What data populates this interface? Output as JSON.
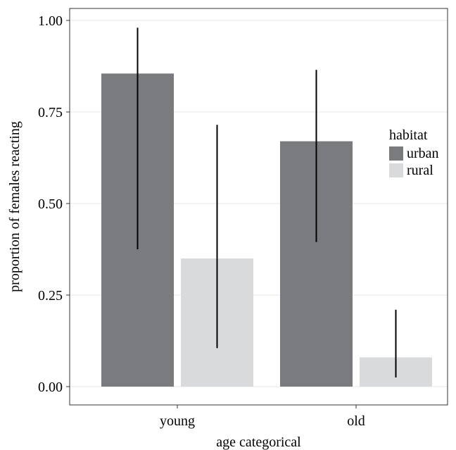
{
  "chart_data": {
    "type": "bar",
    "title": "",
    "xlabel": "age categorical",
    "ylabel": "proportion of females reacting",
    "categories": [
      "young",
      "old"
    ],
    "ylim": [
      0,
      1.0
    ],
    "yticks": [
      0.0,
      0.25,
      0.5,
      0.75,
      1.0
    ],
    "ytick_labels": [
      "0.00",
      "0.25",
      "0.50",
      "0.75",
      "1.00"
    ],
    "grid": true,
    "legend": {
      "title": "habitat",
      "placement": "right"
    },
    "series": [
      {
        "name": "urban",
        "color": "#7a7b7e",
        "values": [
          0.855,
          0.67
        ],
        "err_low": [
          0.375,
          0.395
        ],
        "err_high": [
          0.98,
          0.865
        ]
      },
      {
        "name": "rural",
        "color": "#d9dadb",
        "values": [
          0.35,
          0.08
        ],
        "err_low": [
          0.105,
          0.025
        ],
        "err_high": [
          0.715,
          0.21
        ]
      }
    ]
  }
}
